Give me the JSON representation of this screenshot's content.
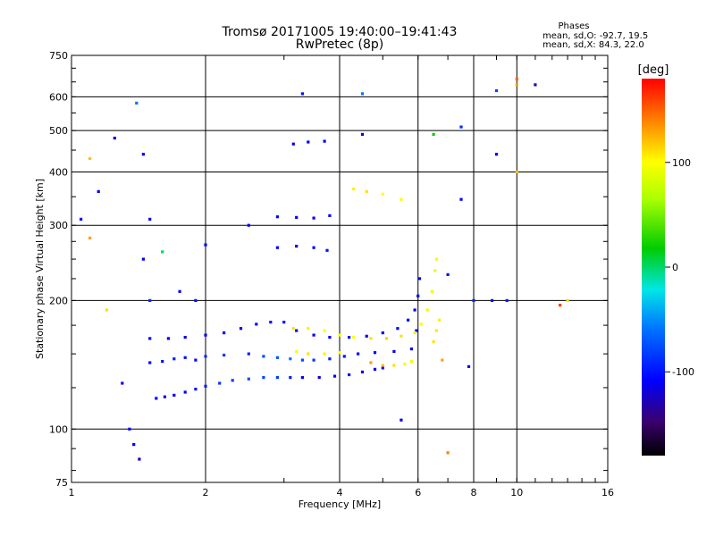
{
  "chart_data": {
    "type": "scatter",
    "title": "Tromsø 20171005 19:40:00–19:41:43",
    "subtitle": "RwPretec (8p)",
    "xlabel": "Frequency [MHz]",
    "ylabel": "Stationary phase Virtual Height [km]",
    "x_scale": "log",
    "y_scale": "log",
    "xlim": [
      1,
      16
    ],
    "ylim": [
      75,
      750
    ],
    "x_ticks": [
      1,
      2,
      4,
      6,
      8,
      10,
      16
    ],
    "y_ticks": [
      75,
      100,
      200,
      300,
      400,
      500,
      600,
      750
    ],
    "grid": true,
    "phases": {
      "title": "Phases",
      "line_o": "mean, sd,O: -92.7, 19.5",
      "line_x": "mean, sd,X:  84.3, 22.0"
    },
    "colorbar": {
      "label": "[deg]",
      "range": [
        -180,
        180
      ],
      "ticks": [
        100,
        0,
        -100
      ],
      "colormap": "rainbow"
    },
    "series": [
      {
        "points": [
          [
            1.55,
            118,
            -110
          ],
          [
            1.62,
            119,
            -112
          ],
          [
            1.7,
            120,
            -115
          ],
          [
            1.8,
            122,
            -110
          ],
          [
            1.9,
            124,
            -100
          ],
          [
            2.0,
            126,
            -95
          ],
          [
            2.15,
            128,
            -85
          ],
          [
            2.3,
            130,
            -80
          ],
          [
            2.5,
            131,
            -75
          ],
          [
            2.7,
            132,
            -78
          ],
          [
            2.9,
            132,
            -82
          ],
          [
            3.1,
            132,
            -95
          ],
          [
            3.3,
            132,
            -115
          ],
          [
            3.6,
            132,
            -118
          ],
          [
            3.9,
            133,
            -112
          ],
          [
            4.2,
            134,
            -105
          ],
          [
            4.5,
            136,
            -115
          ],
          [
            4.8,
            138,
            -110
          ],
          [
            5.0,
            139,
            -100
          ],
          [
            4.7,
            143,
            130
          ],
          [
            5.0,
            141,
            120
          ],
          [
            5.3,
            141,
            110
          ],
          [
            5.6,
            142,
            100
          ],
          [
            5.8,
            144,
            95
          ],
          [
            1.5,
            143,
            -105
          ],
          [
            1.6,
            144,
            -100
          ],
          [
            1.7,
            146,
            -95
          ],
          [
            1.8,
            147,
            -100
          ],
          [
            2.0,
            148,
            -90
          ],
          [
            2.2,
            149,
            -85
          ],
          [
            2.5,
            150,
            -95
          ],
          [
            2.7,
            148,
            -75
          ],
          [
            2.9,
            147,
            -70
          ],
          [
            3.1,
            146,
            -60
          ],
          [
            3.3,
            145,
            -75
          ],
          [
            3.5,
            145,
            -85
          ],
          [
            3.8,
            146,
            -95
          ],
          [
            4.1,
            148,
            -100
          ],
          [
            4.4,
            150,
            -105
          ],
          [
            4.8,
            151,
            -110
          ],
          [
            5.3,
            152,
            -115
          ],
          [
            5.8,
            154,
            -110
          ],
          [
            5.95,
            170,
            -110
          ],
          [
            1.5,
            163,
            -110
          ],
          [
            1.65,
            163,
            -112
          ],
          [
            1.8,
            164,
            -115
          ],
          [
            2.0,
            166,
            -110
          ],
          [
            2.2,
            168,
            -108
          ],
          [
            2.4,
            172,
            -112
          ],
          [
            2.6,
            176,
            -105
          ],
          [
            2.8,
            178,
            -100
          ],
          [
            3.0,
            178,
            -98
          ],
          [
            3.2,
            170,
            -102
          ],
          [
            3.5,
            166,
            -110
          ],
          [
            3.8,
            164,
            -112
          ],
          [
            4.2,
            164,
            -105
          ],
          [
            4.6,
            165,
            -110
          ],
          [
            5.0,
            168,
            -112
          ],
          [
            5.4,
            172,
            -108
          ],
          [
            5.7,
            180,
            -112
          ],
          [
            5.9,
            190,
            -115
          ],
          [
            6.0,
            205,
            -110
          ],
          [
            6.05,
            225,
            -115
          ],
          [
            3.15,
            172,
            110
          ],
          [
            3.4,
            172,
            105
          ],
          [
            3.7,
            170,
            100
          ],
          [
            4.0,
            166,
            95
          ],
          [
            4.3,
            164,
            100
          ],
          [
            4.7,
            163,
            110
          ],
          [
            5.1,
            163,
            115
          ],
          [
            5.5,
            165,
            110
          ],
          [
            5.9,
            168,
            105
          ],
          [
            6.1,
            176,
            100
          ],
          [
            6.3,
            190,
            95
          ],
          [
            6.45,
            210,
            92
          ],
          [
            6.55,
            235,
            90
          ],
          [
            6.6,
            250,
            95
          ],
          [
            3.2,
            152,
            100
          ],
          [
            3.4,
            150,
            110
          ],
          [
            3.7,
            150,
            105
          ],
          [
            4.0,
            151,
            100
          ],
          [
            6.5,
            160,
            110
          ],
          [
            6.6,
            170,
            108
          ],
          [
            6.7,
            180,
            105
          ],
          [
            2.9,
            266,
            -110
          ],
          [
            3.2,
            268,
            -112
          ],
          [
            3.5,
            266,
            -105
          ],
          [
            3.75,
            262,
            -100
          ],
          [
            2.9,
            314,
            -105
          ],
          [
            3.2,
            313,
            -110
          ],
          [
            3.5,
            312,
            -112
          ],
          [
            3.8,
            316,
            -108
          ],
          [
            3.15,
            465,
            -112
          ],
          [
            3.4,
            470,
            -115
          ],
          [
            3.7,
            472,
            -110
          ],
          [
            4.3,
            365,
            105
          ],
          [
            4.6,
            360,
            110
          ],
          [
            5.0,
            355,
            100
          ],
          [
            5.5,
            345,
            98
          ],
          [
            1.4,
            580,
            -60
          ],
          [
            1.45,
            440,
            -110
          ],
          [
            2.5,
            300,
            -115
          ],
          [
            3.3,
            610,
            -100
          ],
          [
            4.5,
            610,
            -60
          ],
          [
            4.5,
            490,
            -120
          ],
          [
            6.5,
            490,
            20
          ],
          [
            7.5,
            510,
            -90
          ],
          [
            9.0,
            440,
            -110
          ],
          [
            9.0,
            620,
            -80
          ],
          [
            10.0,
            660,
            150
          ],
          [
            10.0,
            640,
            130
          ],
          [
            10.0,
            400,
            120
          ],
          [
            11.0,
            640,
            -130
          ],
          [
            7.5,
            345,
            -110
          ],
          [
            7.0,
            230,
            -100
          ],
          [
            8.0,
            200,
            -90
          ],
          [
            8.8,
            200,
            -100
          ],
          [
            9.5,
            200,
            -95
          ],
          [
            13.0,
            200,
            110
          ],
          [
            12.5,
            195,
            160
          ],
          [
            6.8,
            145,
            130
          ],
          [
            7.8,
            140,
            -110
          ],
          [
            7.0,
            88,
            140
          ],
          [
            5.5,
            105,
            -115
          ],
          [
            1.05,
            310,
            -100
          ],
          [
            1.1,
            430,
            120
          ],
          [
            1.1,
            280,
            130
          ],
          [
            1.15,
            360,
            -110
          ],
          [
            1.25,
            480,
            -120
          ],
          [
            1.2,
            190,
            110
          ],
          [
            1.45,
            250,
            -110
          ],
          [
            1.5,
            310,
            -105
          ],
          [
            1.6,
            260,
            0
          ],
          [
            1.75,
            210,
            -110
          ],
          [
            1.9,
            200,
            -100
          ],
          [
            2.0,
            270,
            -110
          ],
          [
            1.35,
            100,
            -110
          ],
          [
            1.38,
            92,
            -110
          ],
          [
            1.42,
            85,
            -120
          ],
          [
            1.3,
            128,
            -110
          ],
          [
            1.5,
            200,
            -90
          ],
          [
            1.9,
            145,
            -105
          ]
        ]
      }
    ]
  }
}
